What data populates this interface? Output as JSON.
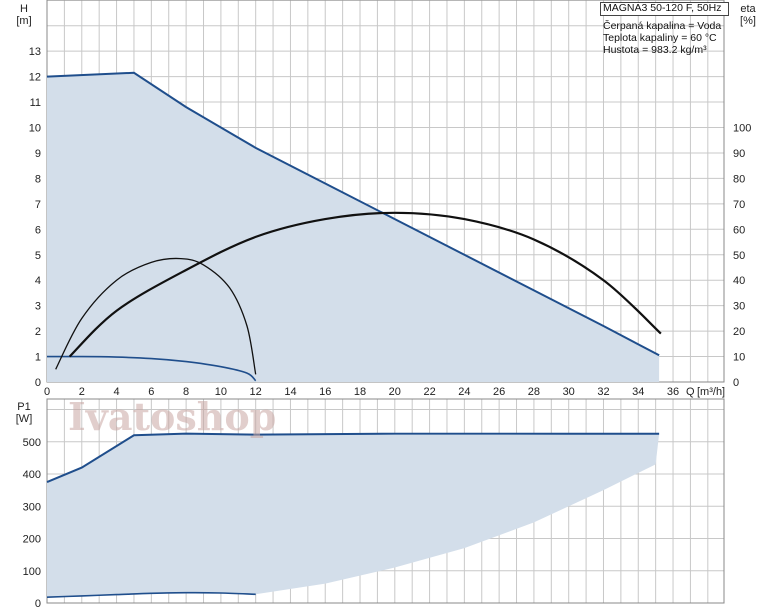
{
  "chart_data": [
    {
      "type": "line",
      "panel": "head",
      "ylabel": "H",
      "yunit": "[m]",
      "ylabel_right": "eta",
      "yunit_right": "[%]",
      "xlabel": "Q",
      "xunit": "[m³/h]",
      "xlim": [
        0,
        39
      ],
      "ylim": [
        0,
        15
      ],
      "ylim_right": [
        0,
        150
      ],
      "x_ticks": [
        0,
        2,
        4,
        6,
        8,
        10,
        12,
        14,
        16,
        18,
        20,
        22,
        24,
        26,
        28,
        30,
        32,
        34,
        36
      ],
      "y_ticks": [
        0,
        1,
        2,
        3,
        4,
        5,
        6,
        7,
        8,
        9,
        10,
        11,
        12,
        13
      ],
      "y_ticks_right": [
        0,
        10,
        20,
        30,
        40,
        50,
        60,
        70,
        80,
        90,
        100
      ],
      "grid": true,
      "series": [
        {
          "role": "head-max",
          "color": "#1f4e8c",
          "x": [
            0,
            5,
            8,
            12,
            16,
            20,
            24,
            28,
            32,
            35.2
          ],
          "y": [
            12.0,
            12.15,
            10.8,
            9.2,
            7.8,
            6.4,
            5.0,
            3.6,
            2.2,
            1.05
          ]
        },
        {
          "role": "head-min",
          "color": "#1f4e8c",
          "x": [
            0,
            2,
            4,
            6,
            8,
            10,
            11.5,
            12
          ],
          "y": [
            1.0,
            1.0,
            0.98,
            0.92,
            0.8,
            0.6,
            0.35,
            0.05
          ]
        },
        {
          "role": "efficiency-max",
          "color": "#111111",
          "axis": "right",
          "x": [
            1.3,
            4,
            8,
            12,
            16,
            20,
            24,
            28,
            32,
            35.3
          ],
          "y": [
            10,
            28,
            44,
            57,
            64,
            66.5,
            64,
            56,
            40,
            19
          ]
        },
        {
          "role": "efficiency-min",
          "color": "#111111",
          "axis": "right",
          "x": [
            0.5,
            2,
            4,
            6,
            7.7,
            9,
            10.5,
            11.5,
            12
          ],
          "y": [
            5,
            25,
            40,
            47,
            48.5,
            46,
            37,
            22,
            3
          ]
        }
      ]
    },
    {
      "type": "line",
      "panel": "power",
      "ylabel": "P1",
      "yunit": "[W]",
      "xlim": [
        0,
        39
      ],
      "ylim": [
        0,
        600
      ],
      "y_ticks": [
        0,
        100,
        200,
        300,
        400,
        500
      ],
      "grid": true,
      "series": [
        {
          "role": "power-max",
          "color": "#1f4e8c",
          "x": [
            0,
            2,
            5,
            8,
            12,
            20,
            30,
            35.2
          ],
          "y": [
            375,
            420,
            520,
            525,
            522,
            525,
            525,
            525
          ]
        },
        {
          "role": "power-min",
          "color": "#1f4e8c",
          "x": [
            0,
            2,
            4,
            6,
            8,
            10,
            12
          ],
          "y": [
            18,
            22,
            26,
            30,
            32,
            31,
            27
          ]
        },
        {
          "role": "power-area-lower",
          "x": [
            12,
            16,
            20,
            24,
            28,
            32,
            35
          ],
          "y": [
            30,
            60,
            110,
            170,
            250,
            350,
            430
          ]
        }
      ]
    }
  ],
  "legend": {
    "title": "MAGNA3 50-120 F, 50Hz",
    "lines": [
      "Čerpaná kapalina = Voda",
      "Teplota kapaliny = 60 °C",
      "Hustota = 983.2 kg/m³"
    ]
  },
  "watermark": "Ivatoshop",
  "colors": {
    "grid": "#c8c8c8",
    "area_fill": "#d3deea",
    "curve_blue": "#1f4e8c",
    "curve_black": "#111111"
  }
}
